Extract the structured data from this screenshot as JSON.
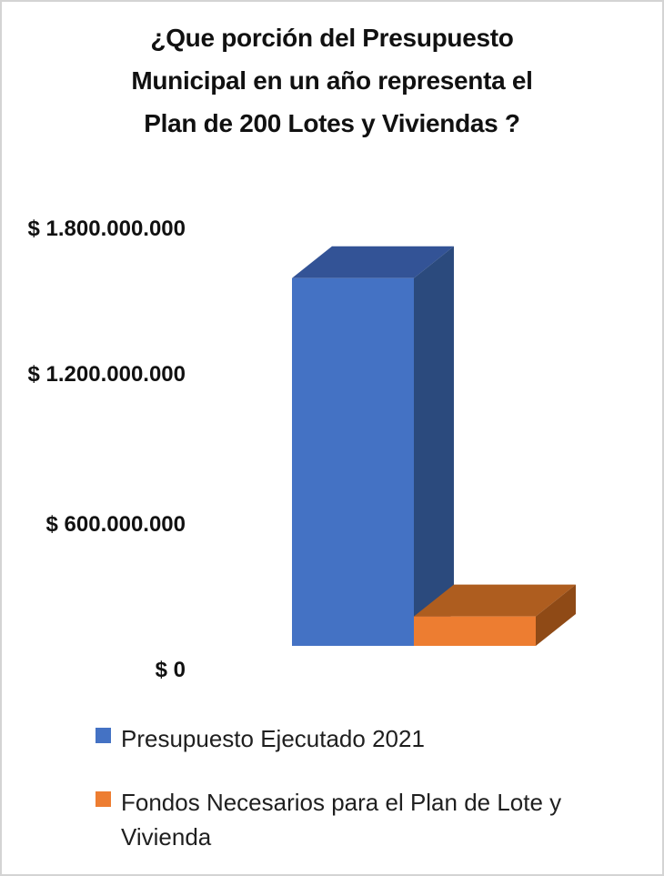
{
  "window": {
    "background": "#ffffff",
    "border_color": "#d4d4d4"
  },
  "chart_data": {
    "type": "bar",
    "subtype": "3d-column",
    "title": "¿Que porción del Presupuesto Municipal en un año representa el Plan de 200 Lotes y Viviendas ?",
    "title_lines": [
      "¿Que porción del Presupuesto",
      "Municipal en un año representa el",
      "Plan de 200 Lotes y Viviendas ?"
    ],
    "categories": [
      "Presupuesto Ejecutado 2021",
      "Fondos Necesarios para el Plan de Lote y Vivienda"
    ],
    "values": [
      1500000000,
      120000000
    ],
    "ylim": [
      0,
      1800000000
    ],
    "ytick_labels": [
      "$ 1.800.000.000",
      "$ 1.200.000.000",
      "$ 600.000.000",
      "$ 0"
    ],
    "ytick_values": [
      1800000000,
      1200000000,
      600000000,
      0
    ],
    "gridlines": false,
    "legend_position": "bottom",
    "series": [
      {
        "name": "Presupuesto Ejecutado 2021",
        "value": 1500000000,
        "colors": {
          "front": "#4472C4",
          "top": "#335396",
          "side": "#2B4A7D"
        }
      },
      {
        "name": "Fondos Necesarios para el Plan de Lote y Vivienda",
        "value": 120000000,
        "colors": {
          "front": "#ED7D31",
          "top": "#AE5D1F",
          "side": "#8F4A16"
        }
      }
    ]
  }
}
